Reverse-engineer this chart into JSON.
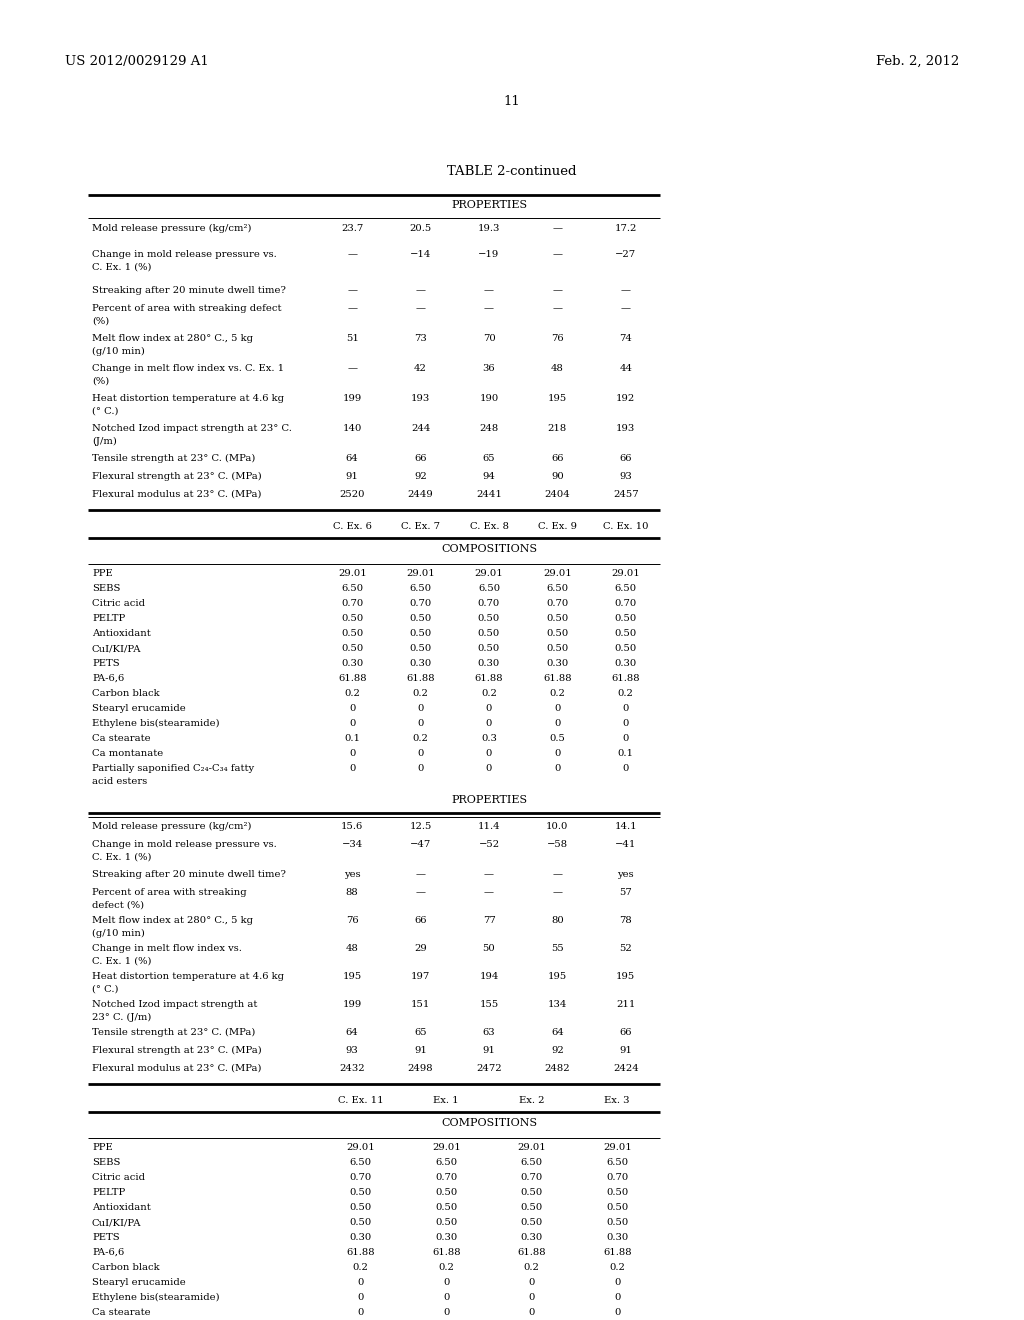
{
  "header_left": "US 2012/0029129 A1",
  "header_right": "Feb. 2, 2012",
  "page_number": "11",
  "table_title": "TABLE 2-continued",
  "section1_header": "PROPERTIES",
  "section1_rows": [
    [
      "Mold release pressure (kg/cm²)",
      "23.7",
      "20.5",
      "19.3",
      "—",
      "17.2"
    ],
    [
      "Change in mold release pressure vs.\nC. Ex. 1 (%)",
      "—",
      "−14",
      "−19",
      "—",
      "−27"
    ],
    [
      "Streaking after 20 minute dwell time?",
      "—",
      "—",
      "—",
      "—",
      "—"
    ],
    [
      "Percent of area with streaking defect\n(%)",
      "—",
      "—",
      "—",
      "—",
      "—"
    ],
    [
      "Melt flow index at 280° C., 5 kg\n(g/10 min)",
      "51",
      "73",
      "70",
      "76",
      "74"
    ],
    [
      "Change in melt flow index vs. C. Ex. 1\n(%)",
      "—",
      "42",
      "36",
      "48",
      "44"
    ],
    [
      "Heat distortion temperature at 4.6 kg\n(° C.)",
      "199",
      "193",
      "190",
      "195",
      "192"
    ],
    [
      "Notched Izod impact strength at 23° C.\n(J/m)",
      "140",
      "244",
      "248",
      "218",
      "193"
    ],
    [
      "Tensile strength at 23° C. (MPa)",
      "64",
      "66",
      "65",
      "66",
      "66"
    ],
    [
      "Flexural strength at 23° C. (MPa)",
      "91",
      "92",
      "94",
      "90",
      "93"
    ],
    [
      "Flexural modulus at 23° C. (MPa)",
      "2520",
      "2449",
      "2441",
      "2404",
      "2457"
    ]
  ],
  "section2_col_headers": [
    "C. Ex. 6",
    "C. Ex. 7",
    "C. Ex. 8",
    "C. Ex. 9",
    "C. Ex. 10"
  ],
  "section2a_header": "COMPOSITIONS",
  "section2a_rows": [
    [
      "PPE",
      "29.01",
      "29.01",
      "29.01",
      "29.01",
      "29.01"
    ],
    [
      "SEBS",
      "6.50",
      "6.50",
      "6.50",
      "6.50",
      "6.50"
    ],
    [
      "Citric acid",
      "0.70",
      "0.70",
      "0.70",
      "0.70",
      "0.70"
    ],
    [
      "PELTP",
      "0.50",
      "0.50",
      "0.50",
      "0.50",
      "0.50"
    ],
    [
      "Antioxidant",
      "0.50",
      "0.50",
      "0.50",
      "0.50",
      "0.50"
    ],
    [
      "CuI/KI/PA",
      "0.50",
      "0.50",
      "0.50",
      "0.50",
      "0.50"
    ],
    [
      "PETS",
      "0.30",
      "0.30",
      "0.30",
      "0.30",
      "0.30"
    ],
    [
      "PA-6,6",
      "61.88",
      "61.88",
      "61.88",
      "61.88",
      "61.88"
    ],
    [
      "Carbon black",
      "0.2",
      "0.2",
      "0.2",
      "0.2",
      "0.2"
    ],
    [
      "Stearyl erucamide",
      "0",
      "0",
      "0",
      "0",
      "0"
    ],
    [
      "Ethylene bis(stearamide)",
      "0",
      "0",
      "0",
      "0",
      "0"
    ],
    [
      "Ca stearate",
      "0.1",
      "0.2",
      "0.3",
      "0.5",
      "0"
    ],
    [
      "Ca montanate",
      "0",
      "0",
      "0",
      "0",
      "0.1"
    ],
    [
      "Partially saponified C₂₄-C₃₄ fatty\nacid esters",
      "0",
      "0",
      "0",
      "0",
      "0"
    ]
  ],
  "section2b_header": "PROPERTIES",
  "section2b_rows": [
    [
      "Mold release pressure (kg/cm²)",
      "15.6",
      "12.5",
      "11.4",
      "10.0",
      "14.1"
    ],
    [
      "Change in mold release pressure vs.\nC. Ex. 1 (%)",
      "−34",
      "−47",
      "−52",
      "−58",
      "−41"
    ],
    [
      "Streaking after 20 minute dwell time?",
      "yes",
      "—",
      "—",
      "—",
      "yes"
    ],
    [
      "Percent of area with streaking\ndefect (%)",
      "88",
      "—",
      "—",
      "—",
      "57"
    ],
    [
      "Melt flow index at 280° C., 5 kg\n(g/10 min)",
      "76",
      "66",
      "77",
      "80",
      "78"
    ],
    [
      "Change in melt flow index vs.\nC. Ex. 1 (%)",
      "48",
      "29",
      "50",
      "55",
      "52"
    ],
    [
      "Heat distortion temperature at 4.6 kg\n(° C.)",
      "195",
      "197",
      "194",
      "195",
      "195"
    ],
    [
      "Notched Izod impact strength at\n23° C. (J/m)",
      "199",
      "151",
      "155",
      "134",
      "211"
    ],
    [
      "Tensile strength at 23° C. (MPa)",
      "64",
      "65",
      "63",
      "64",
      "66"
    ],
    [
      "Flexural strength at 23° C. (MPa)",
      "93",
      "91",
      "91",
      "92",
      "91"
    ],
    [
      "Flexural modulus at 23° C. (MPa)",
      "2432",
      "2498",
      "2472",
      "2482",
      "2424"
    ]
  ],
  "section3_col_headers": [
    "C. Ex. 11",
    "Ex. 1",
    "Ex. 2",
    "Ex. 3"
  ],
  "section3a_header": "COMPOSITIONS",
  "section3a_rows": [
    [
      "PPE",
      "29.01",
      "29.01",
      "29.01",
      "29.01"
    ],
    [
      "SEBS",
      "6.50",
      "6.50",
      "6.50",
      "6.50"
    ],
    [
      "Citric acid",
      "0.70",
      "0.70",
      "0.70",
      "0.70"
    ],
    [
      "PELTP",
      "0.50",
      "0.50",
      "0.50",
      "0.50"
    ],
    [
      "Antioxidant",
      "0.50",
      "0.50",
      "0.50",
      "0.50"
    ],
    [
      "CuI/KI/PA",
      "0.50",
      "0.50",
      "0.50",
      "0.50"
    ],
    [
      "PETS",
      "0.30",
      "0.30",
      "0.30",
      "0.30"
    ],
    [
      "PA-6,6",
      "61.88",
      "61.88",
      "61.88",
      "61.88"
    ],
    [
      "Carbon black",
      "0.2",
      "0.2",
      "0.2",
      "0.2"
    ],
    [
      "Stearyl erucamide",
      "0",
      "0",
      "0",
      "0"
    ],
    [
      "Ethylene bis(stearamide)",
      "0",
      "0",
      "0",
      "0"
    ],
    [
      "Ca stearate",
      "0",
      "0",
      "0",
      "0"
    ]
  ]
}
